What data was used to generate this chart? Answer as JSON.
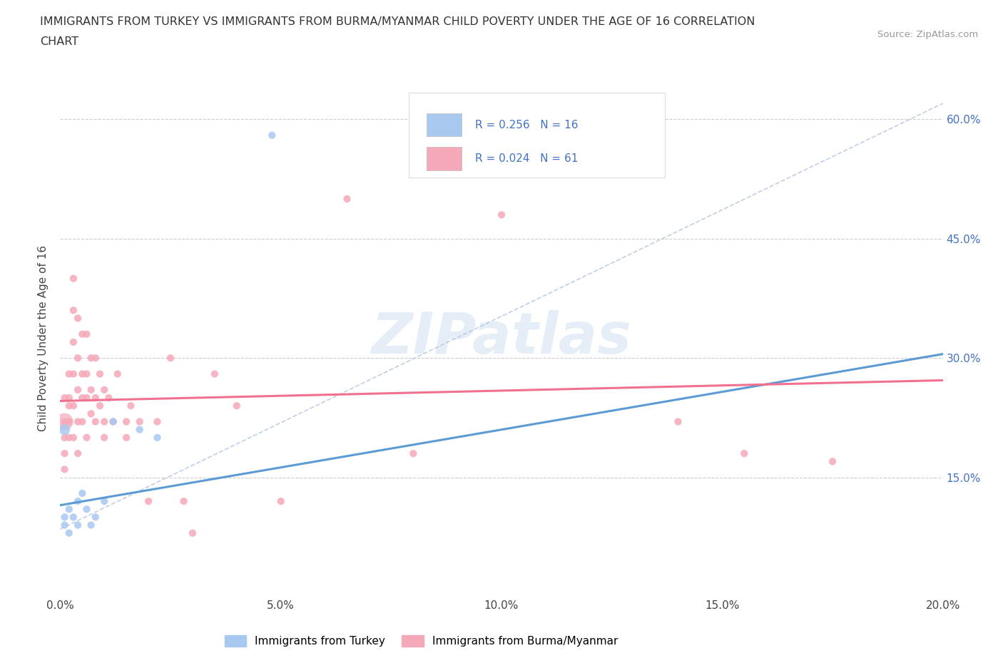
{
  "title_line1": "IMMIGRANTS FROM TURKEY VS IMMIGRANTS FROM BURMA/MYANMAR CHILD POVERTY UNDER THE AGE OF 16 CORRELATION",
  "title_line2": "CHART",
  "source_text": "Source: ZipAtlas.com",
  "ylabel": "Child Poverty Under the Age of 16",
  "xlabel_turkey": "Immigrants from Turkey",
  "xlabel_burma": "Immigrants from Burma/Myanmar",
  "turkey_color": "#a8c8f0",
  "burma_color": "#f5a8b8",
  "turkey_line_color": "#5b9bd5",
  "burma_line_color": "#f07090",
  "dash_line_color": "#b0c4de",
  "R_turkey": 0.256,
  "N_turkey": 16,
  "R_burma": 0.024,
  "N_burma": 61,
  "xlim": [
    0.0,
    0.2
  ],
  "ylim": [
    0.0,
    0.65
  ],
  "xtick_vals": [
    0.0,
    0.05,
    0.1,
    0.15,
    0.2
  ],
  "xtick_labels": [
    "0.0%",
    "5.0%",
    "10.0%",
    "15.0%",
    "20.0%"
  ],
  "ytick_vals": [
    0.15,
    0.3,
    0.45,
    0.6
  ],
  "ytick_labels": [
    "15.0%",
    "30.0%",
    "45.0%",
    "60.0%"
  ],
  "turkey_x": [
    0.001,
    0.001,
    0.002,
    0.002,
    0.003,
    0.004,
    0.004,
    0.005,
    0.006,
    0.007,
    0.008,
    0.01,
    0.012,
    0.018,
    0.022,
    0.048
  ],
  "turkey_y": [
    0.1,
    0.09,
    0.11,
    0.08,
    0.1,
    0.12,
    0.09,
    0.13,
    0.11,
    0.09,
    0.1,
    0.12,
    0.22,
    0.21,
    0.2,
    0.58
  ],
  "burma_x": [
    0.001,
    0.001,
    0.001,
    0.001,
    0.001,
    0.002,
    0.002,
    0.002,
    0.002,
    0.002,
    0.003,
    0.003,
    0.003,
    0.003,
    0.003,
    0.003,
    0.004,
    0.004,
    0.004,
    0.004,
    0.004,
    0.005,
    0.005,
    0.005,
    0.005,
    0.006,
    0.006,
    0.006,
    0.006,
    0.007,
    0.007,
    0.007,
    0.008,
    0.008,
    0.008,
    0.009,
    0.009,
    0.01,
    0.01,
    0.01,
    0.011,
    0.012,
    0.013,
    0.015,
    0.015,
    0.016,
    0.018,
    0.02,
    0.022,
    0.025,
    0.028,
    0.03,
    0.035,
    0.04,
    0.05,
    0.065,
    0.08,
    0.1,
    0.14,
    0.155,
    0.175
  ],
  "burma_y": [
    0.25,
    0.22,
    0.2,
    0.18,
    0.16,
    0.28,
    0.25,
    0.22,
    0.2,
    0.24,
    0.4,
    0.36,
    0.32,
    0.28,
    0.24,
    0.2,
    0.35,
    0.3,
    0.26,
    0.22,
    0.18,
    0.33,
    0.28,
    0.25,
    0.22,
    0.33,
    0.28,
    0.25,
    0.2,
    0.3,
    0.26,
    0.23,
    0.3,
    0.25,
    0.22,
    0.28,
    0.24,
    0.26,
    0.22,
    0.2,
    0.25,
    0.22,
    0.28,
    0.22,
    0.2,
    0.24,
    0.22,
    0.12,
    0.22,
    0.3,
    0.12,
    0.08,
    0.28,
    0.24,
    0.12,
    0.5,
    0.18,
    0.48,
    0.22,
    0.18,
    0.17
  ],
  "turkey_line_x0": 0.0,
  "turkey_line_y0": 0.115,
  "turkey_line_x1": 0.2,
  "turkey_line_y1": 0.305,
  "burma_line_x0": 0.0,
  "burma_line_y0": 0.246,
  "burma_line_x1": 0.2,
  "burma_line_y1": 0.272,
  "dash_line_x0": 0.0,
  "dash_line_y0": 0.085,
  "dash_line_x1": 0.2,
  "dash_line_y1": 0.62,
  "watermark_text": "ZIPatlas"
}
